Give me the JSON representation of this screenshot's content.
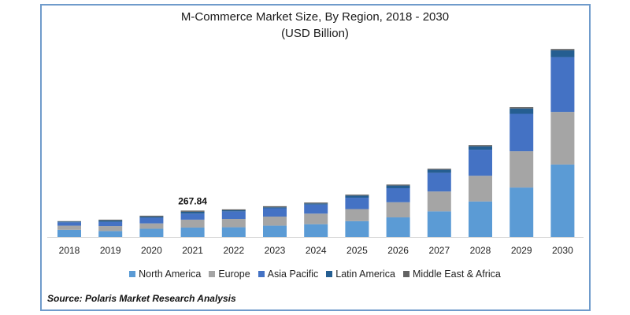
{
  "chart_data": {
    "type": "bar",
    "stacked": true,
    "title": "M-Commerce Market Size, By Region, 2018 - 2030",
    "subtitle": "(USD Billion)",
    "xlabel": "",
    "ylabel": "",
    "grid": false,
    "legend_position": "bottom",
    "categories": [
      "2018",
      "2019",
      "2020",
      "2021",
      "2022",
      "2023",
      "2024",
      "2025",
      "2026",
      "2027",
      "2028",
      "2029",
      "2030"
    ],
    "series": [
      {
        "name": "North America",
        "color": "#5B9BD5",
        "values": [
          73,
          61,
          84,
          96,
          99,
          115,
          130,
          161,
          199,
          260,
          360,
          501,
          734
        ]
      },
      {
        "name": "Europe",
        "color": "#A5A5A5",
        "values": [
          42,
          50,
          54,
          80,
          84,
          92,
          107,
          122,
          153,
          201,
          260,
          367,
          532
        ]
      },
      {
        "name": "Asia Pacific",
        "color": "#4472C4",
        "values": [
          34,
          42,
          57,
          61,
          77,
          84,
          92,
          115,
          142,
          189,
          264,
          379,
          555
        ]
      },
      {
        "name": "Latin America",
        "color": "#255E91",
        "values": [
          8,
          15,
          11,
          19,
          11,
          10,
          11,
          21,
          27,
          31,
          34,
          54,
          69
        ]
      },
      {
        "name": "Middle East & Africa",
        "color": "#636363",
        "values": [
          4,
          8,
          10,
          11.84,
          9,
          11,
          9,
          10,
          10,
          10,
          13,
          13,
          13
        ]
      }
    ],
    "annotations": [
      {
        "category": "2021",
        "text": "267.84"
      }
    ],
    "ylim": [
      0,
      2000
    ]
  },
  "source": "Source: Polaris  Market Research Analysis"
}
